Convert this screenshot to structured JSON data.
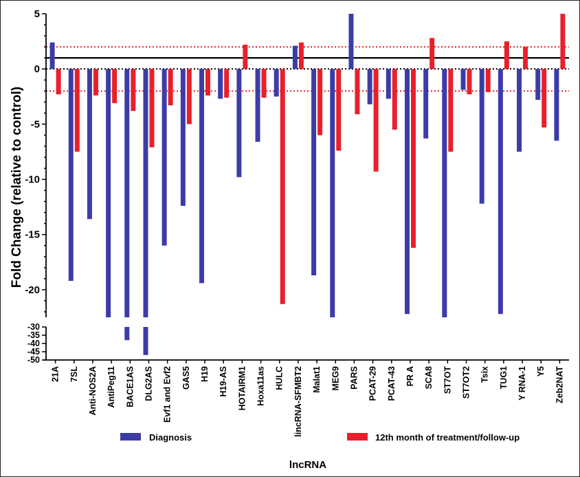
{
  "chart_data": {
    "type": "bar",
    "xlabel": "lncRNA",
    "ylabel": "Fold Change (relative to control)",
    "ylim": [
      -50,
      5
    ],
    "axis_break": [
      -22.5,
      -30
    ],
    "upper_ticks": [
      5,
      0,
      -5,
      -10,
      -15,
      -20
    ],
    "lower_ticks": [
      -30,
      -35,
      -40,
      -45,
      -50
    ],
    "reference_lines": [
      {
        "value": 0,
        "style": "dotted",
        "color": "#000000"
      },
      {
        "value": 2,
        "style": "dotted",
        "color": "#e8202a"
      },
      {
        "value": -2,
        "style": "dotted",
        "color": "#e8202a"
      },
      {
        "value": 1,
        "style": "solid",
        "color": "#000000"
      }
    ],
    "legend_position": "bottom",
    "categories": [
      "21A",
      "7SL",
      "Anti-NOS2A",
      "AntiPeg11",
      "BACE1AS",
      "DLG2AS",
      "Evf1 and Evf2",
      "GAS5",
      "H19",
      "H19-AS",
      "HOTAIRM1",
      "Hoxa11as",
      "HULC",
      "lincRNA-SFMBT2",
      "Malat1",
      "MEG9",
      "PARS",
      "PCAT-29",
      "PCAT-43",
      "PR A",
      "SCA8",
      "ST7OT",
      "ST7OT2",
      "Tsix",
      "TUG1",
      "Y RNA-1",
      "Y5",
      "Zeb2NAT"
    ],
    "series": [
      {
        "name": "Diagnosis",
        "color": "#3c3ca8",
        "values": [
          2.4,
          -19.2,
          -13.6,
          -22.5,
          -38,
          -47,
          -16,
          -12.4,
          -19.4,
          -2.7,
          -9.8,
          -6.6,
          -2.5,
          2.1,
          -18.7,
          -22.5,
          5,
          -3.2,
          -2.7,
          -22.2,
          -6.3,
          -22.5,
          -1.9,
          -12.2,
          -22.2,
          -7.5,
          -2.8,
          -6.5
        ]
      },
      {
        "name": "12th month of treatment/follow-up",
        "color": "#e8202a",
        "values": [
          -2.3,
          -7.5,
          -2.4,
          -3.1,
          -3.8,
          -7.1,
          -3.3,
          -5.0,
          -2.4,
          -2.6,
          2.2,
          -2.6,
          -21.3,
          2.4,
          -6.0,
          -7.4,
          -4.1,
          -9.3,
          -5.5,
          -16.2,
          2.8,
          -7.5,
          -2.3,
          -2.1,
          2.5,
          2.0,
          -5.3,
          5.0
        ]
      }
    ]
  }
}
